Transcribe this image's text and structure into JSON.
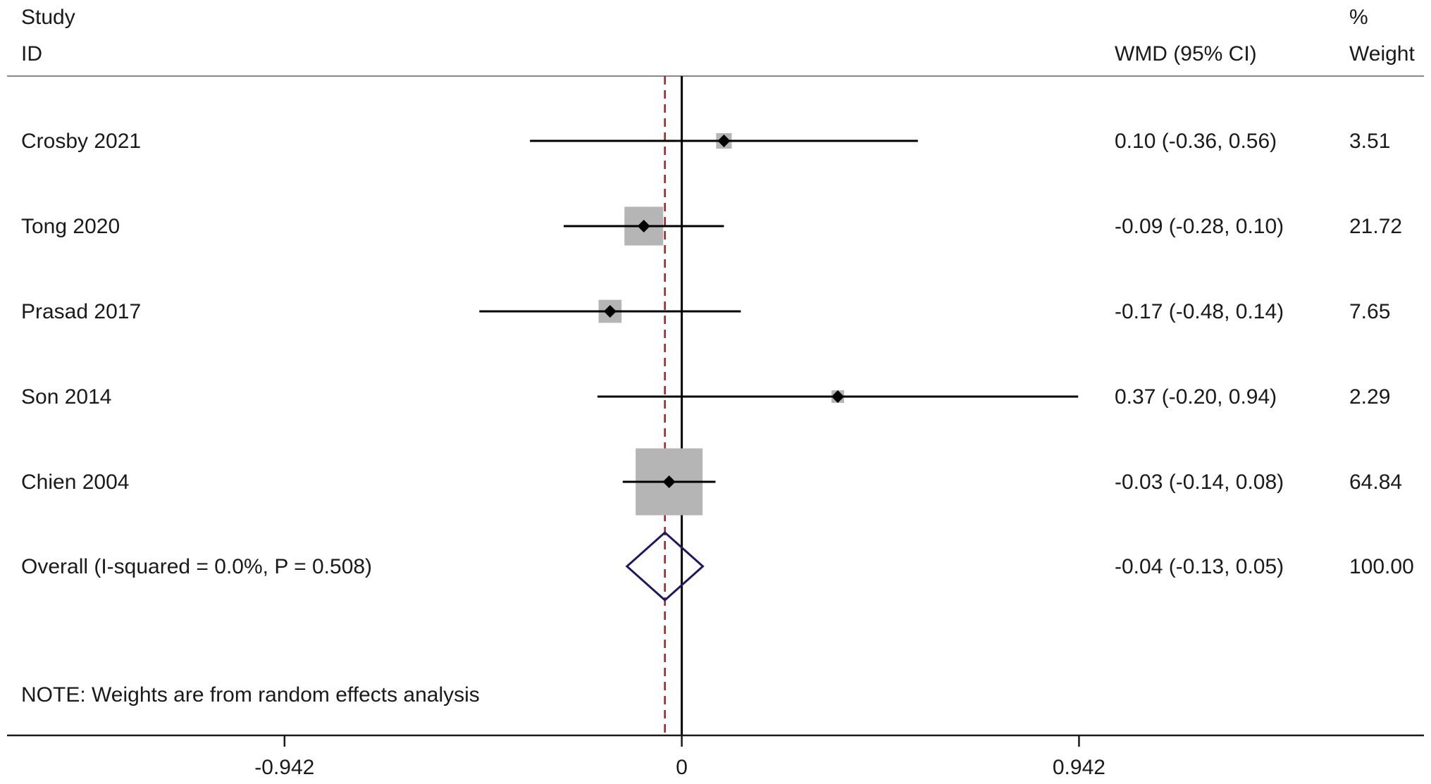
{
  "chart_data": {
    "type": "forest",
    "header": {
      "study_line1": "Study",
      "study_line2": "ID",
      "effect_label": "WMD (95% CI)",
      "weight_line1": "%",
      "weight_line2": "Weight"
    },
    "studies": [
      {
        "label": "Crosby 2021",
        "estimate": 0.1,
        "ci_low": -0.36,
        "ci_high": 0.56,
        "ci_text": "0.10 (-0.36, 0.56)",
        "weight": 3.51,
        "weight_text": "3.51"
      },
      {
        "label": "Tong 2020",
        "estimate": -0.09,
        "ci_low": -0.28,
        "ci_high": 0.1,
        "ci_text": "-0.09 (-0.28, 0.10)",
        "weight": 21.72,
        "weight_text": "21.72"
      },
      {
        "label": "Prasad 2017",
        "estimate": -0.17,
        "ci_low": -0.48,
        "ci_high": 0.14,
        "ci_text": "-0.17 (-0.48, 0.14)",
        "weight": 7.65,
        "weight_text": "7.65"
      },
      {
        "label": "Son 2014",
        "estimate": 0.37,
        "ci_low": -0.2,
        "ci_high": 0.94,
        "ci_text": "0.37 (-0.20, 0.94)",
        "weight": 2.29,
        "weight_text": "2.29"
      },
      {
        "label": "Chien 2004",
        "estimate": -0.03,
        "ci_low": -0.14,
        "ci_high": 0.08,
        "ci_text": "-0.03 (-0.14, 0.08)",
        "weight": 64.84,
        "weight_text": "64.84"
      }
    ],
    "overall": {
      "label": "Overall  (I-squared = 0.0%, P = 0.508)",
      "estimate": -0.04,
      "ci_low": -0.13,
      "ci_high": 0.05,
      "ci_text": "-0.04 (-0.13, 0.05)",
      "weight_text": "100.00"
    },
    "note": "NOTE: Weights are from random effects analysis",
    "x_axis": {
      "xlim": [
        -1.6,
        1.76
      ],
      "ticks": [
        -0.942,
        0,
        0.942
      ],
      "tick_labels": [
        "-0.942",
        "0",
        "0.942"
      ]
    },
    "null_line": 0,
    "colors": {
      "text": "#1a1a1a",
      "box": "#b5b5b5",
      "point": "#000000",
      "diamond": "#1f1a5e",
      "overall_line": "#9b2226"
    }
  }
}
